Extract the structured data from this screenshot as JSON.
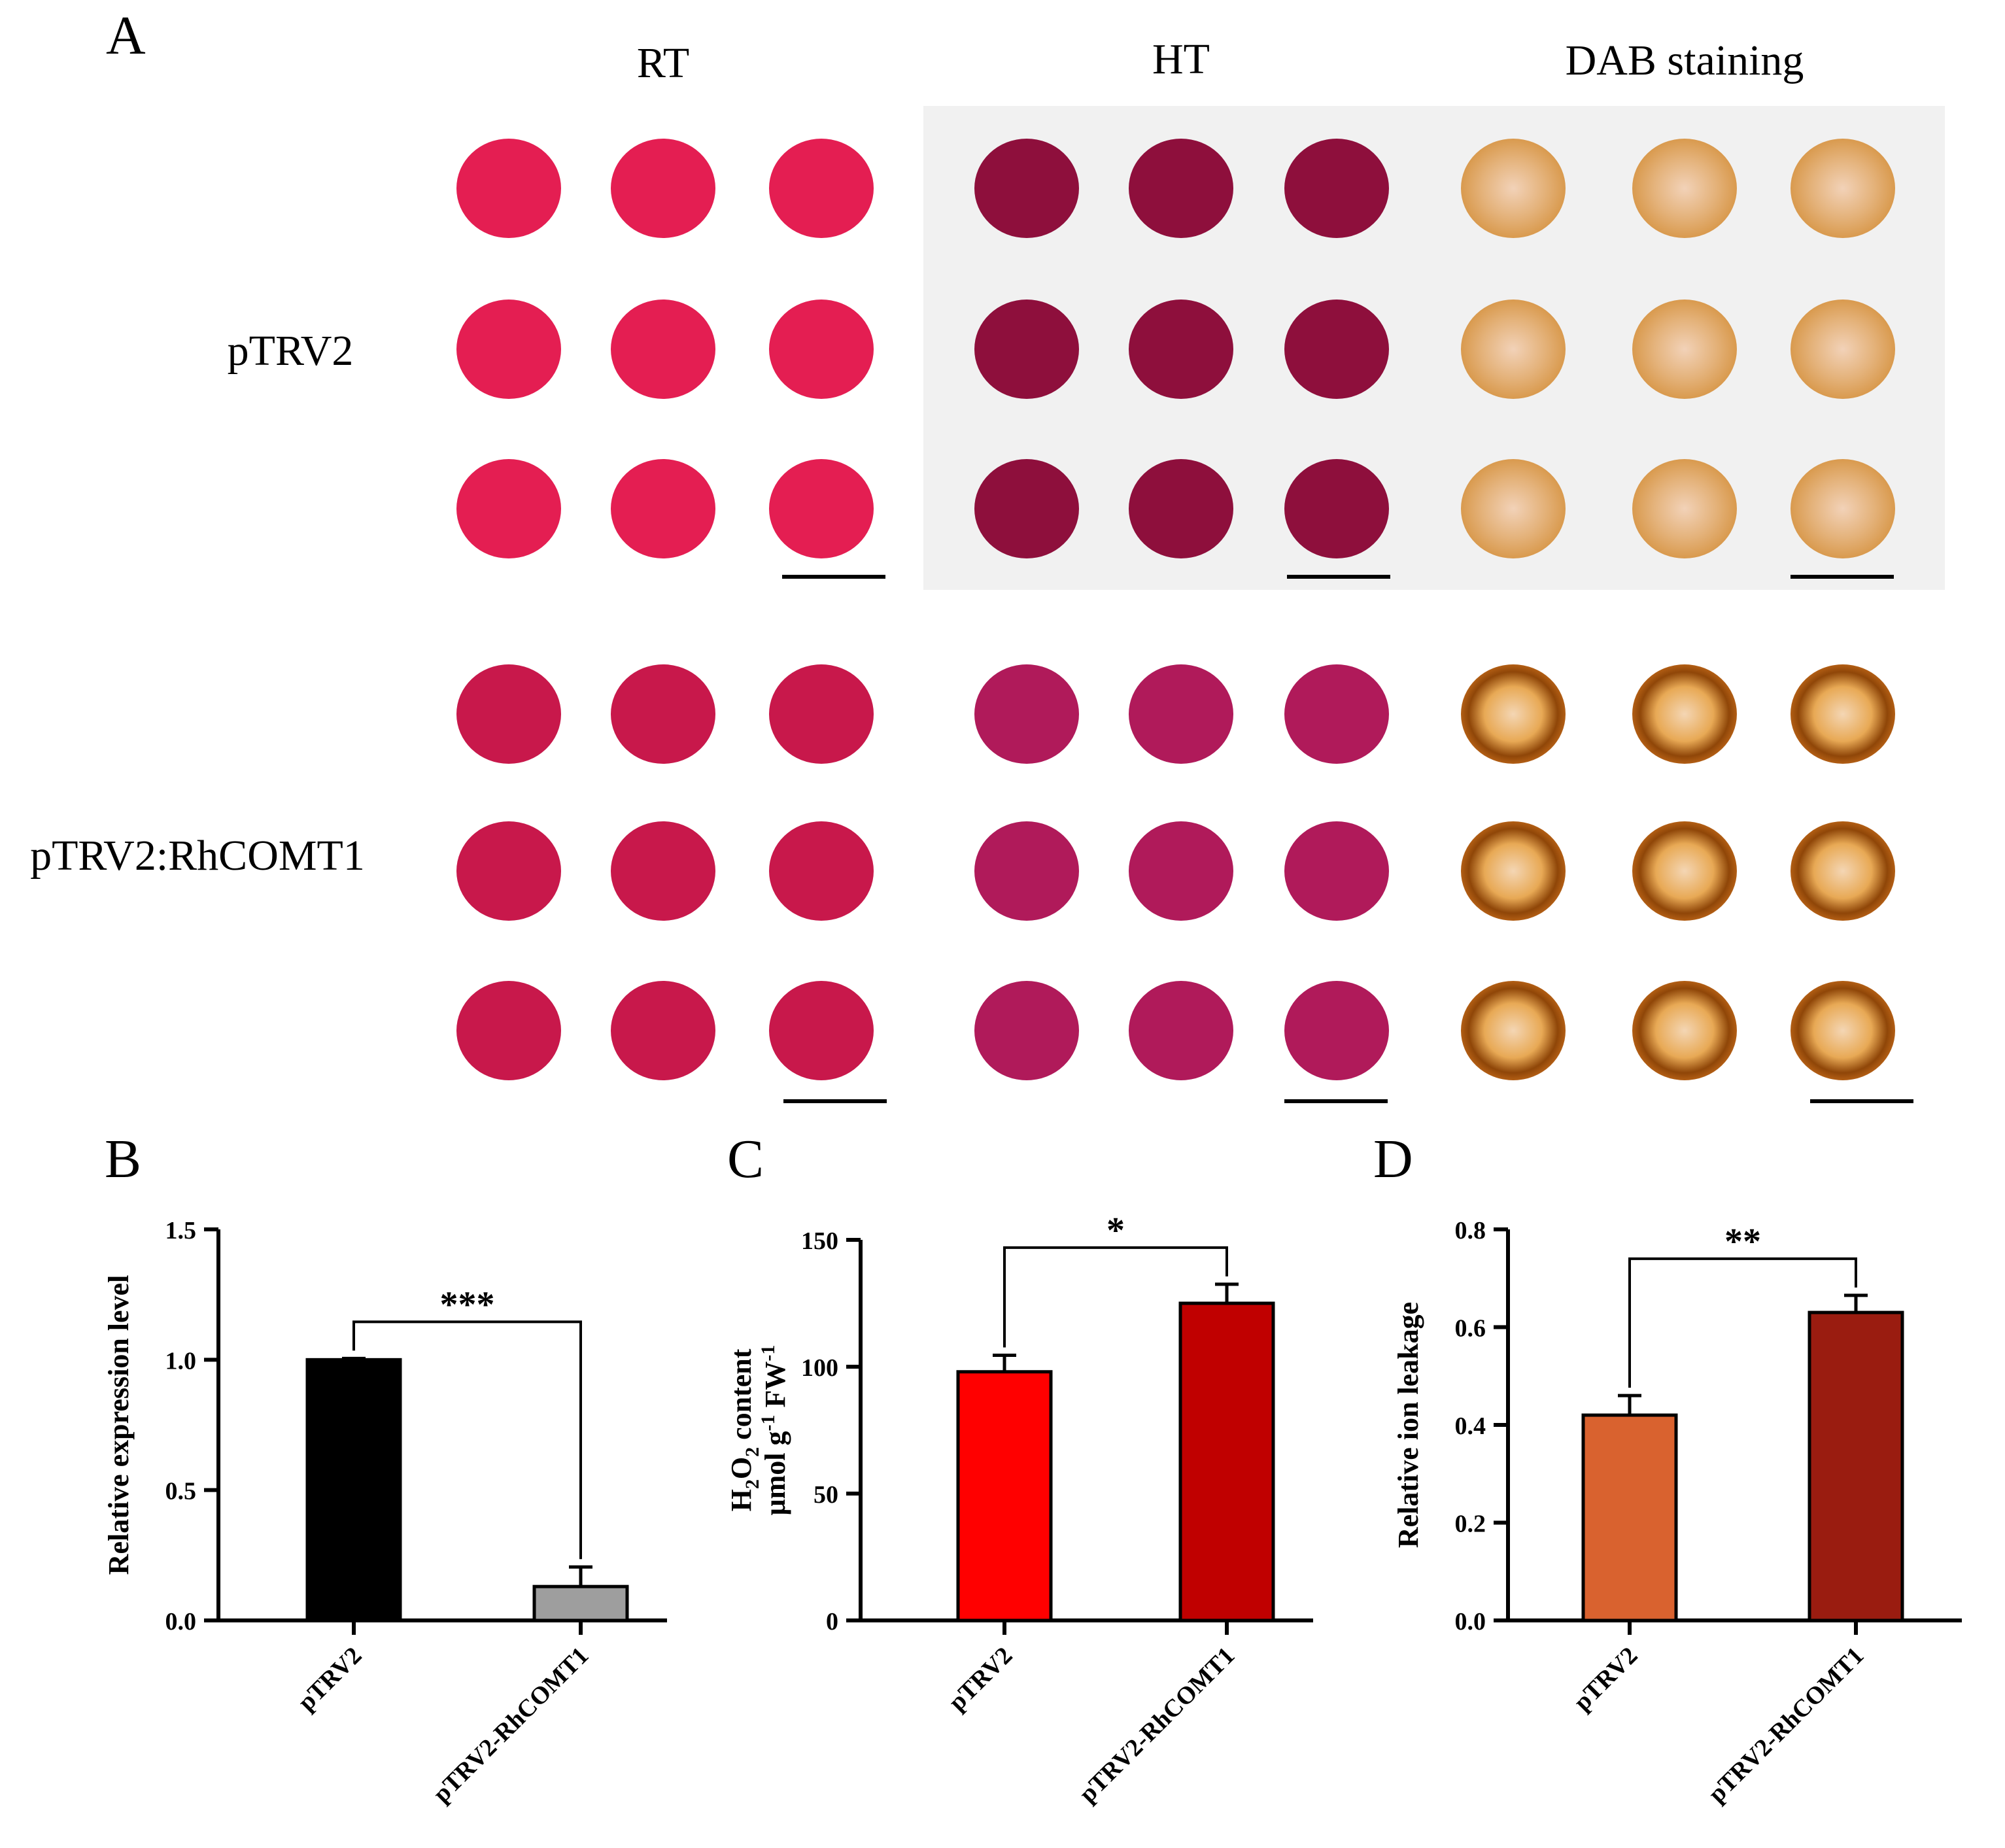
{
  "figure": {
    "panel_labels": {
      "a": "A",
      "b": "B",
      "c": "C",
      "d": "D"
    },
    "photo_panel": {
      "column_headers": [
        "RT",
        "HT",
        "DAB staining"
      ],
      "row_labels": [
        "pTRV2",
        "pTRV2:RhCOMT1"
      ],
      "colors": {
        "rt_pTRV2": "#e41e52",
        "ht_pTRV2": "#8e0f3c",
        "dab_pTRV2": "#d99a4e",
        "rt_pTRV2_RhCOMT1": "#c8184b",
        "ht_pTRV2_RhCOMT1": "#b01a5a",
        "dab_pTRV2_RhCOMT1": "#b25e14",
        "ht_background": "#f1f1f1"
      }
    }
  },
  "chart_data": [
    {
      "type": "bar",
      "panel": "B",
      "categories": [
        "pTRV2",
        "pTRV2-RhCOMT1"
      ],
      "values": [
        1.0,
        0.13
      ],
      "errors": [
        0.005,
        0.075
      ],
      "colors": [
        "#000000",
        "#9e9e9e"
      ],
      "ylabel": "Relative expression level",
      "ylim": [
        0,
        1.5
      ],
      "yticks": [
        "0.0",
        "0.5",
        "1.0",
        "1.5"
      ],
      "significance": "***"
    },
    {
      "type": "bar",
      "panel": "C",
      "categories": [
        "pTRV2",
        "pTRV2-RhCOMT1"
      ],
      "values": [
        98,
        125
      ],
      "errors": [
        6.5,
        7.5
      ],
      "colors": [
        "#ff0000",
        "#c00000"
      ],
      "ylabel_line1": [
        "H",
        "2",
        "O",
        "2",
        " content"
      ],
      "ylabel_line2": [
        "μmol g",
        "-1",
        " FW",
        "-1"
      ],
      "ylim": [
        0,
        150
      ],
      "yticks": [
        "0",
        "50",
        "100",
        "150"
      ],
      "significance": "*"
    },
    {
      "type": "bar",
      "panel": "D",
      "categories": [
        "pTRV2",
        "pTRV2-RhCOMT1"
      ],
      "values": [
        0.42,
        0.63
      ],
      "errors": [
        0.04,
        0.035
      ],
      "colors": [
        "#d9622f",
        "#9a1c10"
      ],
      "ylabel": "Relative ion leakage",
      "ylim": [
        0,
        0.8
      ],
      "yticks": [
        "0.0",
        "0.2",
        "0.4",
        "0.6",
        "0.8"
      ],
      "significance": "**"
    }
  ]
}
